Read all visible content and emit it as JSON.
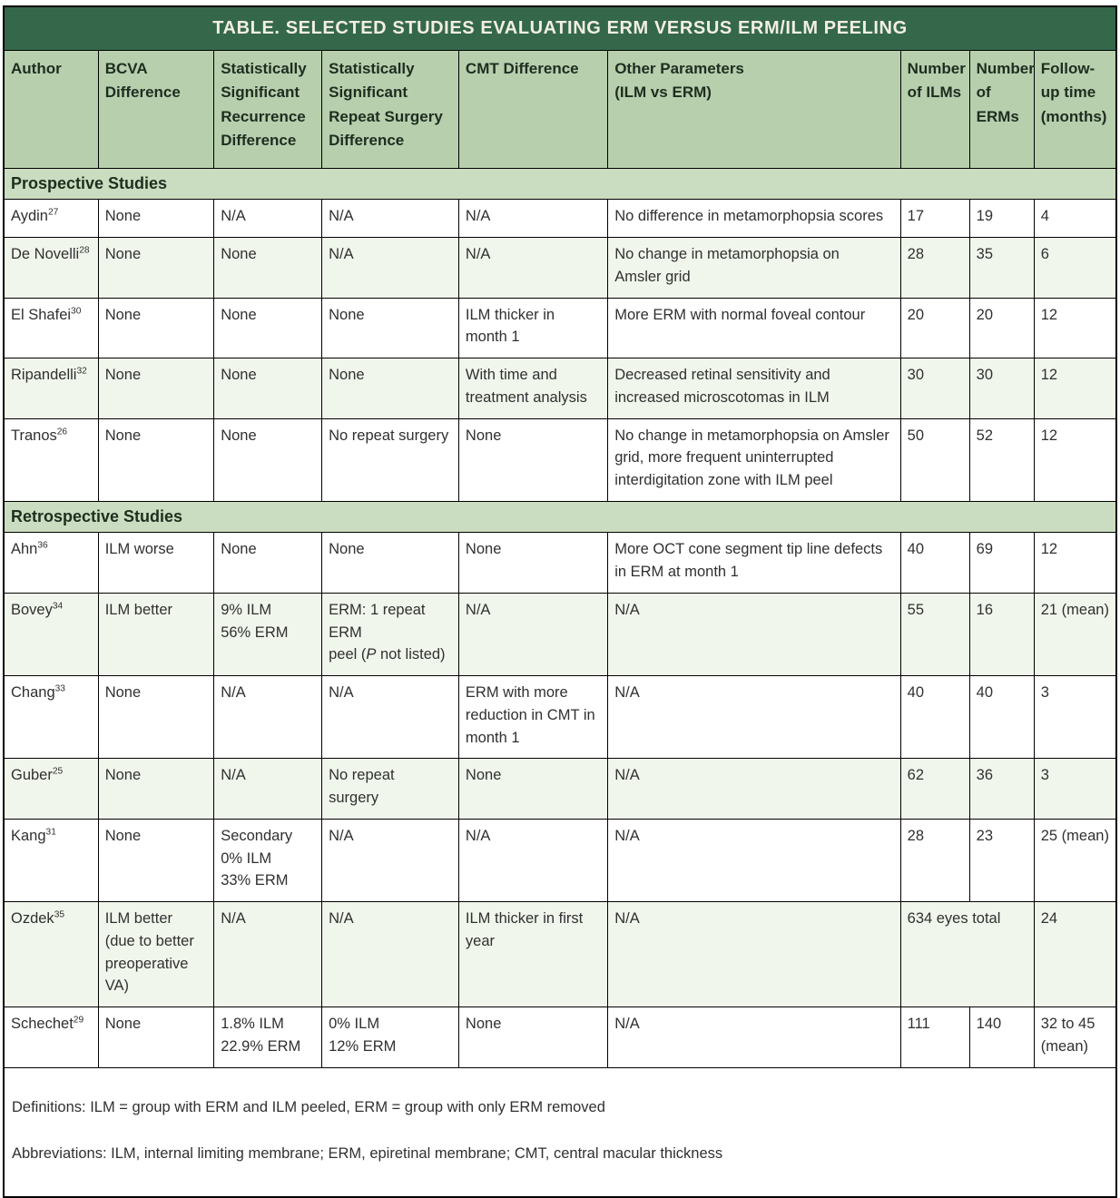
{
  "title": "TABLE. SELECTED STUDIES EVALUATING ERM VERSUS ERM/ILM PEELING",
  "columns": [
    {
      "label": "Author"
    },
    {
      "label": "BCVA\nDifference"
    },
    {
      "label": "Statistically\nSignificant\nRecurrence\nDifference"
    },
    {
      "label": "Statistically\nSignificant\nRepeat Surgery\nDifference"
    },
    {
      "label": "CMT Difference"
    },
    {
      "label": "Other Parameters\n(ILM vs ERM)"
    },
    {
      "label": "Number\nof ILMs"
    },
    {
      "label": "Number\nof ERMs"
    },
    {
      "label": "Follow-\nup time\n(months)"
    }
  ],
  "sections": [
    {
      "label": "Prospective Studies",
      "rows": [
        {
          "cells": [
            {
              "text": "Aydin",
              "sup": "27"
            },
            "None",
            "N/A",
            "N/A",
            "N/A",
            "No difference in metamorphopsia scores",
            "17",
            "19",
            "4"
          ]
        },
        {
          "cells": [
            {
              "text": "De Novelli",
              "sup": "28"
            },
            "None",
            "None",
            "N/A",
            "N/A",
            "No change in metamorphopsia on\nAmsler grid",
            "28",
            "35",
            "6"
          ]
        },
        {
          "cells": [
            {
              "text": "El Shafei",
              "sup": "30"
            },
            "None",
            "None",
            "None",
            "ILM thicker in\nmonth 1",
            "More ERM with normal foveal contour",
            "20",
            "20",
            "12"
          ]
        },
        {
          "cells": [
            {
              "text": "Ripandelli",
              "sup": "32"
            },
            "None",
            "None",
            "None",
            "With time and\ntreatment analysis",
            "Decreased retinal sensitivity and\nincreased microscotomas in ILM",
            "30",
            "30",
            "12"
          ]
        },
        {
          "cells": [
            {
              "text": "Tranos",
              "sup": "26"
            },
            "None",
            "None",
            "No repeat surgery",
            "None",
            "No change in metamorphopsia on Amsler\ngrid, more frequent uninterrupted\ninterdigitation zone with ILM peel",
            "50",
            "52",
            "12"
          ]
        }
      ]
    },
    {
      "label": "Retrospective Studies",
      "rows": [
        {
          "cells": [
            {
              "text": "Ahn",
              "sup": "36"
            },
            "ILM worse",
            "None",
            "None",
            "None",
            "More OCT cone segment tip line defects\nin ERM at month 1",
            "40",
            "69",
            "12"
          ]
        },
        {
          "cells": [
            {
              "text": "Bovey",
              "sup": "34"
            },
            "ILM better",
            "9% ILM\n56% ERM",
            {
              "parts": [
                {
                  "t": "ERM: 1 repeat ERM\npeel ("
                },
                {
                  "t": "P",
                  "i": true
                },
                {
                  "t": " not listed)"
                }
              ]
            },
            "N/A",
            "N/A",
            "55",
            "16",
            "21 (mean)"
          ]
        },
        {
          "cells": [
            {
              "text": "Chang",
              "sup": "33"
            },
            "None",
            "N/A",
            "N/A",
            "ERM with more\nreduction in CMT in\nmonth 1",
            "N/A",
            "40",
            "40",
            "3"
          ]
        },
        {
          "cells": [
            {
              "text": "Guber",
              "sup": "25"
            },
            "None",
            "N/A",
            "No repeat\nsurgery",
            "None",
            "N/A",
            "62",
            "36",
            "3"
          ]
        },
        {
          "cells": [
            {
              "text": "Kang",
              "sup": "31"
            },
            "None",
            "Secondary\n0% ILM\n33% ERM",
            "N/A",
            "N/A",
            "N/A",
            "28",
            "23",
            "25 (mean)"
          ]
        },
        {
          "cells": [
            {
              "text": "Ozdek",
              "sup": "35"
            },
            "ILM better\n(due to better\npreoperative\nVA)",
            "N/A",
            "N/A",
            "ILM thicker in first\nyear",
            "N/A",
            {
              "text": "634 eyes total",
              "span": 2
            },
            "24"
          ]
        },
        {
          "cells": [
            {
              "text": "Schechet",
              "sup": "29"
            },
            "None",
            "1.8% ILM\n22.9% ERM",
            "0% ILM\n12% ERM",
            "None",
            "N/A",
            "111",
            "140",
            "32 to 45\n(mean)"
          ]
        }
      ]
    }
  ],
  "footer": {
    "definitions": "Definitions: ILM = group with ERM and ILM peeled, ERM = group with only ERM removed",
    "abbreviations": "Abbreviations: ILM, internal limiting membrane; ERM, epiretinal membrane; CMT, central macular thickness"
  },
  "colors": {
    "title_bg": "#35684b",
    "title_text": "#f2efe2",
    "header_bg": "#b7cfad",
    "section_bg": "#cbddc0",
    "row_alt_bg": "#f1f6ec",
    "border": "#000000",
    "text": "#303030"
  }
}
